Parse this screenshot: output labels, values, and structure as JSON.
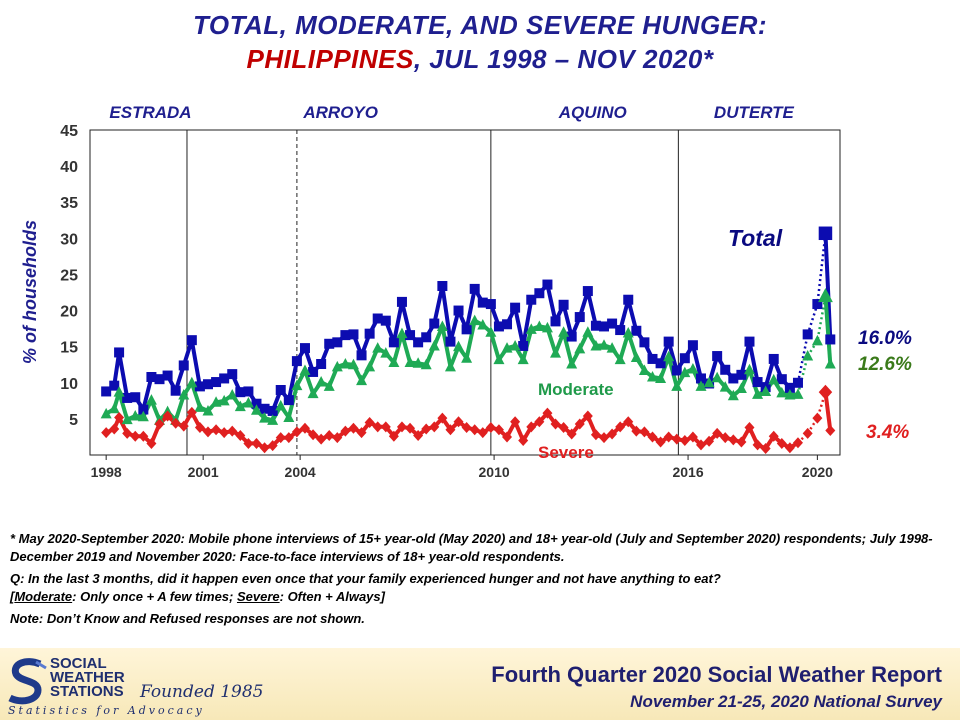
{
  "title": {
    "line1": "TOTAL, MODERATE, AND SEVERE HUNGER:",
    "line2_country": "PHILIPPINES",
    "line2_rest": ", JUL 1998 – NOV 2020*"
  },
  "chart_data": {
    "type": "line",
    "ylabel": "% of households",
    "ylim": [
      0,
      45
    ],
    "yticks": [
      5,
      10,
      15,
      20,
      25,
      30,
      35,
      40,
      45
    ],
    "xlim": [
      1998.0,
      2021.2
    ],
    "xticks": [
      {
        "value": 1998.5,
        "label": "1998"
      },
      {
        "value": 2001.5,
        "label": "2001"
      },
      {
        "value": 2004.5,
        "label": "2004"
      },
      {
        "value": 2010.5,
        "label": "2010"
      },
      {
        "value": 2016.5,
        "label": "2016"
      },
      {
        "value": 2020.5,
        "label": "2020"
      }
    ],
    "admin_dividers": [
      {
        "x": 2001.0,
        "style": "solid"
      },
      {
        "x": 2004.4,
        "style": "dashed"
      },
      {
        "x": 2010.4,
        "style": "solid"
      },
      {
        "x": 2016.2,
        "style": "solid"
      }
    ],
    "administrations": [
      {
        "label": "ESTRADA",
        "x": 1998.6
      },
      {
        "label": "ARROYO",
        "x": 2004.6
      },
      {
        "label": "AQUINO",
        "x": 2012.5
      },
      {
        "label": "DUTERTE",
        "x": 2017.3
      }
    ],
    "series": [
      {
        "name": "Total",
        "color": "#0c0cb0",
        "marker": "square",
        "end_label": "16.0%",
        "x": [
          1998.5,
          1998.75,
          1998.9,
          1999.15,
          1999.4,
          1999.65,
          1999.9,
          2000.15,
          2000.4,
          2000.65,
          2000.9,
          2001.15,
          2001.4,
          2001.65,
          2001.9,
          2002.15,
          2002.4,
          2002.65,
          2002.9,
          2003.15,
          2003.4,
          2003.65,
          2003.9,
          2004.15,
          2004.4,
          2004.65,
          2004.9,
          2005.15,
          2005.4,
          2005.65,
          2005.9,
          2006.15,
          2006.4,
          2006.65,
          2006.9,
          2007.15,
          2007.4,
          2007.65,
          2007.9,
          2008.15,
          2008.4,
          2008.65,
          2008.9,
          2009.15,
          2009.4,
          2009.65,
          2009.9,
          2010.15,
          2010.4,
          2010.65,
          2010.9,
          2011.15,
          2011.4,
          2011.65,
          2011.9,
          2012.15,
          2012.4,
          2012.65,
          2012.9,
          2013.15,
          2013.4,
          2013.65,
          2013.9,
          2014.15,
          2014.4,
          2014.65,
          2014.9,
          2015.15,
          2015.4,
          2015.65,
          2015.9,
          2016.15,
          2016.4,
          2016.65,
          2016.9,
          2017.15,
          2017.4,
          2017.65,
          2017.9,
          2018.15,
          2018.4,
          2018.65,
          2018.9,
          2019.15,
          2019.4,
          2019.65,
          2019.9
        ],
        "y": [
          8.8,
          9.6,
          14.2,
          7.9,
          8,
          6.3,
          10.8,
          10.5,
          11,
          8.9,
          12.4,
          15.9,
          9.5,
          9.8,
          10.1,
          10.6,
          11.2,
          8.7,
          8.8,
          7.1,
          6.4,
          6.1,
          9,
          7.6,
          13,
          14.8,
          11.5,
          12.6,
          15.4,
          15.6,
          16.6,
          16.7,
          13.8,
          16.8,
          18.9,
          18.6,
          15.6,
          21.2,
          16.6,
          15.6,
          16.3,
          18.2,
          23.4,
          15.7,
          20,
          17.4,
          23,
          21.1,
          20.9,
          17.8,
          18.1,
          20.4,
          15.1,
          21.5,
          22.4,
          23.6,
          18.5,
          20.8,
          16.4,
          19.1,
          22.7,
          17.9,
          17.8,
          18.2,
          17.3,
          21.5,
          17.2,
          15.6,
          13.3,
          12.7,
          15.7,
          11.7,
          13.4,
          15.2,
          10.6,
          9.9,
          13.7,
          11.8,
          10.6,
          11.1,
          15.7,
          10.1,
          9.4,
          13.3,
          10.5,
          9.3,
          10
        ]
      },
      {
        "name": "Moderate",
        "color": "#1faa55",
        "marker": "triangle",
        "end_label": "12.6%",
        "x": [
          1998.5,
          1998.75,
          1998.9,
          1999.15,
          1999.4,
          1999.65,
          1999.9,
          2000.15,
          2000.4,
          2000.65,
          2000.9,
          2001.15,
          2001.4,
          2001.65,
          2001.9,
          2002.15,
          2002.4,
          2002.65,
          2002.9,
          2003.15,
          2003.4,
          2003.65,
          2003.9,
          2004.15,
          2004.4,
          2004.65,
          2004.9,
          2005.15,
          2005.4,
          2005.65,
          2005.9,
          2006.15,
          2006.4,
          2006.65,
          2006.9,
          2007.15,
          2007.4,
          2007.65,
          2007.9,
          2008.15,
          2008.4,
          2008.65,
          2008.9,
          2009.15,
          2009.4,
          2009.65,
          2009.9,
          2010.15,
          2010.4,
          2010.65,
          2010.9,
          2011.15,
          2011.4,
          2011.65,
          2011.9,
          2012.15,
          2012.4,
          2012.65,
          2012.9,
          2013.15,
          2013.4,
          2013.65,
          2013.9,
          2014.15,
          2014.4,
          2014.65,
          2014.9,
          2015.15,
          2015.4,
          2015.65,
          2015.9,
          2016.15,
          2016.4,
          2016.65,
          2016.9,
          2017.15,
          2017.4,
          2017.65,
          2017.9,
          2018.15,
          2018.4,
          2018.65,
          2018.9,
          2019.15,
          2019.4,
          2019.65,
          2019.9
        ],
        "y": [
          5.7,
          6.4,
          8.7,
          4.9,
          5.4,
          5.3,
          7.6,
          4.8,
          6,
          4.8,
          8.3,
          10,
          6.6,
          6.1,
          7.3,
          7.5,
          8.3,
          6.7,
          7.2,
          6.2,
          5.1,
          4.8,
          6.8,
          5.2,
          9.6,
          11.7,
          8.5,
          10.1,
          9.5,
          12.2,
          12.6,
          12.5,
          10.3,
          12.2,
          14.8,
          14.1,
          12.8,
          16.8,
          12.8,
          12.7,
          12.5,
          15.1,
          17.8,
          12.2,
          15,
          13.4,
          18.6,
          18,
          17,
          13.2,
          14.8,
          15.1,
          13.2,
          17.4,
          17.8,
          17.6,
          14.1,
          17,
          12.6,
          14.7,
          17,
          15.1,
          15.2,
          14.8,
          13.2,
          16.9,
          13.5,
          11.7,
          10.8,
          10.6,
          13.6,
          9.5,
          11.4,
          11.9,
          9.5,
          10,
          10.7,
          9.4,
          8.2,
          9.2,
          11.8,
          8.4,
          8.8,
          10.4,
          8.6,
          8.3,
          8.4
        ]
      },
      {
        "name": "Severe",
        "color": "#e02020",
        "marker": "diamond",
        "end_label": "3.4%",
        "x": [
          1998.5,
          1998.75,
          1998.9,
          1999.15,
          1999.4,
          1999.65,
          1999.9,
          2000.15,
          2000.4,
          2000.65,
          2000.9,
          2001.15,
          2001.4,
          2001.65,
          2001.9,
          2002.15,
          2002.4,
          2002.65,
          2002.9,
          2003.15,
          2003.4,
          2003.65,
          2003.9,
          2004.15,
          2004.4,
          2004.65,
          2004.9,
          2005.15,
          2005.4,
          2005.65,
          2005.9,
          2006.15,
          2006.4,
          2006.65,
          2006.9,
          2007.15,
          2007.4,
          2007.65,
          2007.9,
          2008.15,
          2008.4,
          2008.65,
          2008.9,
          2009.15,
          2009.4,
          2009.65,
          2009.9,
          2010.15,
          2010.4,
          2010.65,
          2010.9,
          2011.15,
          2011.4,
          2011.65,
          2011.9,
          2012.15,
          2012.4,
          2012.65,
          2012.9,
          2013.15,
          2013.4,
          2013.65,
          2013.9,
          2014.15,
          2014.4,
          2014.65,
          2014.9,
          2015.15,
          2015.4,
          2015.65,
          2015.9,
          2016.15,
          2016.4,
          2016.65,
          2016.9,
          2017.15,
          2017.4,
          2017.65,
          2017.9,
          2018.15,
          2018.4,
          2018.65,
          2018.9,
          2019.15,
          2019.4,
          2019.65,
          2019.9
        ],
        "y": [
          3.1,
          3.6,
          5.2,
          3,
          2.6,
          2.6,
          1.6,
          4.3,
          5.4,
          4.4,
          4,
          5.9,
          3.8,
          3.2,
          3.5,
          3.1,
          3.3,
          2.7,
          1.6,
          1.6,
          1,
          1.3,
          2.4,
          2.4,
          3.2,
          3.7,
          2.8,
          2.2,
          2.7,
          2.4,
          3.3,
          3.7,
          3.1,
          4.5,
          3.9,
          3.9,
          2.6,
          3.9,
          3.7,
          2.7,
          3.6,
          3.9,
          5.1,
          3.5,
          4.6,
          3.8,
          3.5,
          3.1,
          3.8,
          3.5,
          2.5,
          4.6,
          2,
          3.9,
          4.6,
          5.8,
          4.3,
          3.8,
          2.9,
          4.3,
          5.4,
          2.8,
          2.4,
          2.9,
          3.9,
          4.6,
          3.3,
          3.2,
          2.5,
          1.8,
          2.5,
          2.2,
          2,
          2.5,
          1.4,
          1.9,
          3,
          2.4,
          2.1,
          1.8,
          3.8,
          1.4,
          0.9,
          2.6,
          1.6,
          1,
          1.7
        ]
      }
    ],
    "survey_2020": {
      "x": [
        2020.2,
        2020.5,
        2020.75,
        2020.9
      ],
      "total": [
        16.7,
        20.9,
        30.7,
        16.0
      ],
      "moderate": [
        13.7,
        15.8,
        22,
        12.6
      ],
      "severe": [
        3,
        5.1,
        8.7,
        3.4
      ]
    },
    "annotations": {
      "total": "Total",
      "moderate": "Moderate",
      "severe": "Severe"
    }
  },
  "notes": {
    "n1": "* May 2020-September 2020: Mobile phone interviews of 15+ year-old (May 2020) and 18+ year-old (July and September 2020) respondents; July 1998-December 2019 and November 2020: Face-to-face interviews of 18+ year-old respondents.",
    "q_prefix": "Q: In the last 3 months, did it happen even once that your family experienced hunger and not have anything to eat?",
    "def_open": "[",
    "def_moderate": "Moderate",
    "def_mid": ": Only once + A few times; ",
    "def_severe": "Severe",
    "def_close": ": Often + Always]",
    "n3": "Note: Don’t Know and Refused responses are not shown."
  },
  "footer": {
    "logo_line1": "SOCIAL",
    "logo_line2": "WEATHER",
    "logo_line3": "STATIONS",
    "founded": "Founded 1985",
    "tagline": "Statistics for Advocacy",
    "report_title": "Fourth Quarter 2020 Social Weather Report",
    "report_sub": "November 21-25, 2020 National Survey"
  }
}
